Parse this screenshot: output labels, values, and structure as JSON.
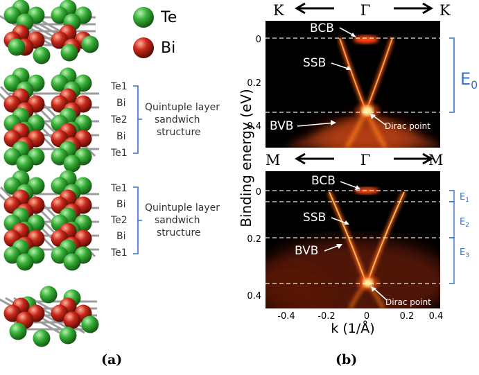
{
  "panel_a": {
    "legend": [
      {
        "label": "Te",
        "color": "#2f9e2f"
      },
      {
        "label": "Bi",
        "color": "#c0261a"
      }
    ],
    "layers": [
      {
        "labels": [
          "Te1",
          "Bi",
          "Te2",
          "Bi",
          "Te1"
        ],
        "caption": [
          "Quintuple layer",
          "sandwich",
          "structure"
        ]
      },
      {
        "labels": [
          "Te1",
          "Bi",
          "Te2",
          "Bi",
          "Te1"
        ],
        "caption": [
          "Quintuple layer",
          "sandwich",
          "structure"
        ]
      }
    ],
    "caption": "(a)"
  },
  "panel_b": {
    "top": {
      "dir_left": "K",
      "dir_center": "Γ",
      "dir_right": "K",
      "bcb": "BCB",
      "ssb": "SSB",
      "bvb": "BVB",
      "dirac": "Dirac point",
      "range_label": "E",
      "range_sub": "0",
      "yticks": [
        "0",
        "0.2",
        "0.4"
      ]
    },
    "bottom": {
      "dir_left": "M",
      "dir_center": "Γ",
      "dir_right": "M",
      "bcb": "BCB",
      "ssb": "SSB",
      "bvb": "BVB",
      "dirac": "Dirac point",
      "range_labels": [
        {
          "label": "E",
          "sub": "1"
        },
        {
          "label": "E",
          "sub": "2"
        },
        {
          "label": "E",
          "sub": "3"
        }
      ],
      "yticks": [
        "0",
        "0.2",
        "0.4"
      ],
      "xticks": [
        "-0.4",
        "-0.2",
        "0",
        "0.2",
        "0.4"
      ]
    },
    "ylabel": "Binding energy (eV)",
    "xlabel": "k (1/Å)",
    "caption": "(b)"
  },
  "colors": {
    "bracket": "#3a6fd0",
    "arpes_bg": "#000000",
    "arpes_band": "#ff6a1a",
    "arpes_hot": "#ffd23a"
  }
}
